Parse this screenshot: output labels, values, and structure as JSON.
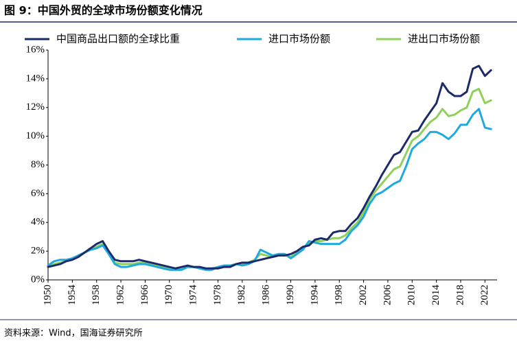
{
  "chart_data": {
    "type": "line",
    "title": "图 9：中国外贸的全球市场份额变化情况",
    "source": "资料来源：Wind，国海证券研究所",
    "x": [
      1950,
      1951,
      1952,
      1953,
      1954,
      1955,
      1956,
      1957,
      1958,
      1959,
      1960,
      1961,
      1962,
      1963,
      1964,
      1965,
      1966,
      1967,
      1968,
      1969,
      1970,
      1971,
      1972,
      1973,
      1974,
      1975,
      1976,
      1977,
      1978,
      1979,
      1980,
      1981,
      1982,
      1983,
      1984,
      1985,
      1986,
      1987,
      1988,
      1989,
      1990,
      1991,
      1992,
      1993,
      1994,
      1995,
      1996,
      1997,
      1998,
      1999,
      2000,
      2001,
      2002,
      2003,
      2004,
      2005,
      2006,
      2007,
      2008,
      2009,
      2010,
      2011,
      2012,
      2013,
      2014,
      2015,
      2016,
      2017,
      2018,
      2019,
      2020,
      2021,
      2022,
      2023
    ],
    "series": [
      {
        "name": "中国商品出口额的全球比重",
        "color": "#1b2a6b",
        "values": [
          0.9,
          1.0,
          1.1,
          1.3,
          1.4,
          1.6,
          1.9,
          2.2,
          2.5,
          2.7,
          2.0,
          1.4,
          1.3,
          1.3,
          1.3,
          1.4,
          1.3,
          1.2,
          1.1,
          1.0,
          0.9,
          0.8,
          0.9,
          1.0,
          0.9,
          0.9,
          0.8,
          0.8,
          0.8,
          0.9,
          0.9,
          1.1,
          1.2,
          1.2,
          1.3,
          1.4,
          1.5,
          1.6,
          1.7,
          1.7,
          1.8,
          2.0,
          2.3,
          2.4,
          2.8,
          2.9,
          2.8,
          3.3,
          3.4,
          3.4,
          3.9,
          4.3,
          5.0,
          5.8,
          6.5,
          7.3,
          8.0,
          8.7,
          8.9,
          9.6,
          10.3,
          10.4,
          11.1,
          11.7,
          12.3,
          13.7,
          13.1,
          12.8,
          12.8,
          13.1,
          14.7,
          14.9,
          14.2,
          14.6
        ]
      },
      {
        "name": "进口市场份额",
        "color": "#1ea9e1",
        "values": [
          1.0,
          1.3,
          1.4,
          1.4,
          1.5,
          1.7,
          1.9,
          2.1,
          2.2,
          2.4,
          1.8,
          1.1,
          0.9,
          0.9,
          1.0,
          1.1,
          1.1,
          1.0,
          0.9,
          0.8,
          0.7,
          0.7,
          0.7,
          0.9,
          0.9,
          0.8,
          0.7,
          0.7,
          0.9,
          1.0,
          1.0,
          1.1,
          1.0,
          1.1,
          1.3,
          2.1,
          1.9,
          1.7,
          1.8,
          1.8,
          1.5,
          1.8,
          2.1,
          2.7,
          2.6,
          2.5,
          2.5,
          2.5,
          2.5,
          2.8,
          3.4,
          3.8,
          4.4,
          5.3,
          5.9,
          6.1,
          6.4,
          6.7,
          6.9,
          7.9,
          9.1,
          9.5,
          9.8,
          10.3,
          10.3,
          10.1,
          9.8,
          10.2,
          10.8,
          10.8,
          11.5,
          11.9,
          10.6,
          10.5
        ]
      },
      {
        "name": "进出口市场份额",
        "color": "#8fd05a",
        "values": [
          1.0,
          1.1,
          1.2,
          1.3,
          1.5,
          1.7,
          1.9,
          2.1,
          2.3,
          2.5,
          1.9,
          1.2,
          1.1,
          1.1,
          1.1,
          1.2,
          1.2,
          1.1,
          1.0,
          0.9,
          0.8,
          0.7,
          0.8,
          0.9,
          0.9,
          0.8,
          0.7,
          0.8,
          0.9,
          1.0,
          1.0,
          1.1,
          1.1,
          1.2,
          1.4,
          1.8,
          1.7,
          1.6,
          1.7,
          1.7,
          1.6,
          1.9,
          2.2,
          2.6,
          2.7,
          2.7,
          2.8,
          2.9,
          2.9,
          3.1,
          3.6,
          4.0,
          4.7,
          5.6,
          6.2,
          6.7,
          7.2,
          7.7,
          7.9,
          8.8,
          9.7,
          10.0,
          10.5,
          11.0,
          11.3,
          11.9,
          11.4,
          11.5,
          11.8,
          12.0,
          13.1,
          13.3,
          12.3,
          12.5
        ]
      }
    ],
    "xlim": [
      1950,
      2024
    ],
    "xticks": [
      1950,
      1954,
      1958,
      1962,
      1966,
      1970,
      1974,
      1978,
      1982,
      1986,
      1990,
      1994,
      1998,
      2002,
      2006,
      2010,
      2014,
      2018,
      2022
    ],
    "ylim": [
      0,
      16
    ],
    "yticks": [
      {
        "value": 0,
        "label": "0%"
      },
      {
        "value": 2,
        "label": "2%"
      },
      {
        "value": 4,
        "label": "4%"
      },
      {
        "value": 6,
        "label": "6%"
      },
      {
        "value": 8,
        "label": "8%"
      },
      {
        "value": 10,
        "label": "10%"
      },
      {
        "value": 12,
        "label": "12%"
      },
      {
        "value": 14,
        "label": "14%"
      },
      {
        "value": 16,
        "label": "16%"
      }
    ],
    "legend": "top"
  }
}
